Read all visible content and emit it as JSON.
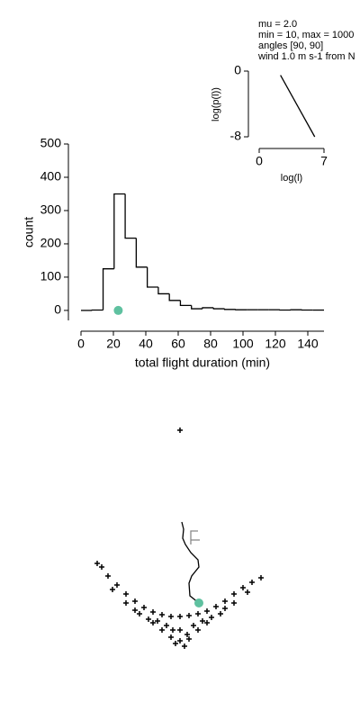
{
  "chart_data": [
    {
      "type": "histogram",
      "bins": [
        0,
        6.82,
        13.64,
        20.45,
        27.27,
        34.09,
        40.91,
        47.73,
        54.55,
        61.36,
        68.18,
        75,
        81.82,
        88.64,
        95.45,
        102.27,
        109.09,
        115.91,
        122.73,
        129.55,
        136.36,
        143.18,
        150
      ],
      "values": [
        0,
        1,
        125,
        350,
        217,
        130,
        70,
        50,
        30,
        15,
        5,
        8,
        5,
        3,
        2,
        2,
        2,
        2,
        1,
        2,
        1,
        1
      ],
      "color": "#000000",
      "xlim": [
        0,
        150
      ],
      "ylim": [
        -30,
        500
      ],
      "xticks": [
        0,
        20,
        40,
        60,
        80,
        100,
        120,
        140
      ],
      "yticks": [
        0,
        100,
        200,
        300,
        400,
        500
      ],
      "xlabel": "total flight duration (min)",
      "ylabel": "count",
      "marker": {
        "x": 23,
        "y": 0,
        "color": "#5fc1a0"
      }
    },
    {
      "type": "line",
      "annotations": [
        "mu = 2.0",
        "min = 10, max = 1000",
        "angles [90, 90]",
        "wind 1.0 m s-1 from N"
      ],
      "x": [
        2.3,
        6.0
      ],
      "values": [
        -0.5,
        -8
      ],
      "color": "#000000",
      "xlim": [
        0,
        7
      ],
      "ylim": [
        -8,
        0
      ],
      "xticks": [
        0,
        7
      ],
      "yticks": [
        0,
        -8
      ],
      "xlabel": "log(l)",
      "ylabel": "log(p(l))"
    },
    {
      "type": "scatter",
      "xlim": [
        -200,
        200
      ],
      "ylim": [
        -160,
        160
      ],
      "color": "#000000",
      "x": [
        0,
        -92,
        -87,
        -80,
        -70,
        -60,
        -50,
        -40,
        -30,
        -20,
        -10,
        0,
        10,
        20,
        30,
        40,
        50,
        60,
        70,
        80,
        90,
        -75,
        -60,
        -45,
        -30,
        -20,
        -10,
        -5,
        0,
        5,
        10,
        20,
        30,
        45,
        60,
        75,
        -50,
        -35,
        -15,
        0,
        15,
        35,
        50,
        -25,
        25,
        8,
        -8
      ],
      "y": [
        122,
        -26,
        -30,
        -40,
        -50,
        -60,
        -68,
        -75,
        -80,
        -83,
        -85,
        -85,
        -84,
        -82,
        -79,
        -74,
        -68,
        -60,
        -53,
        -47,
        -42,
        -55,
        -70,
        -82,
        -92,
        -100,
        -108,
        -115,
        -112,
        -118,
        -110,
        -100,
        -92,
        -82,
        -70,
        -58,
        -78,
        -88,
        -95,
        -100,
        -95,
        -86,
        -76,
        -90,
        -90,
        -105,
        -100
      ],
      "paths": [
        {
          "color": "#000000",
          "x": [
            21,
            11,
            10,
            13,
            21,
            20,
            12,
            6,
            3,
            4,
            2
          ],
          "y": [
            -70,
            -62,
            -48,
            -40,
            -30,
            -22,
            -14,
            -5,
            2,
            12,
            20
          ]
        },
        {
          "color": "#888888",
          "x": [
            12,
            12,
            20
          ],
          "y": [
            -5,
            10,
            10
          ]
        },
        {
          "color": "#888888",
          "x": [
            12,
            22
          ],
          "y": [
            0,
            0
          ]
        }
      ],
      "marker": {
        "x": 21,
        "y": -70,
        "color": "#5fc1a0"
      }
    }
  ]
}
